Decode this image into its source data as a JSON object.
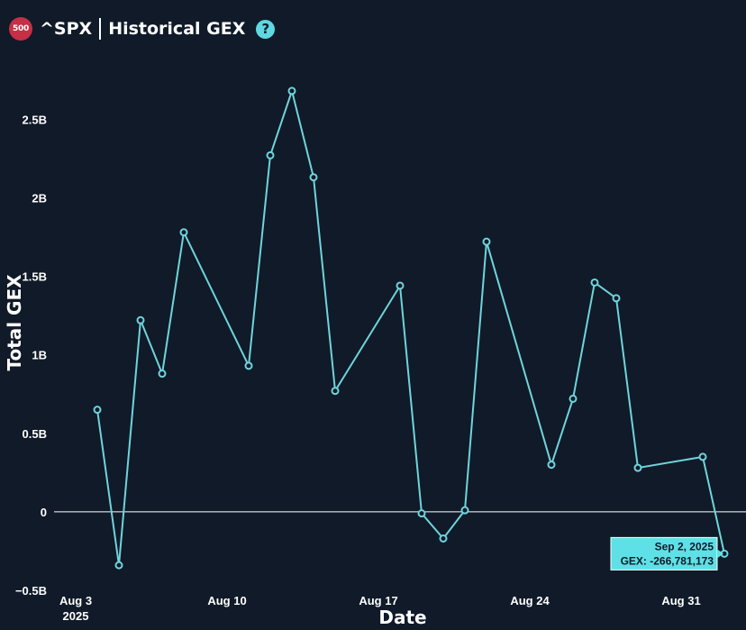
{
  "header": {
    "badge_text": "500",
    "ticker": "^SPX",
    "title": "Historical GEX",
    "help_symbol": "?"
  },
  "colors": {
    "background": "#101a28",
    "line": "#6fd4dc",
    "badge": "#c62f45",
    "help_icon": "#5fd8e2",
    "tooltip_bg": "#5fe0e6",
    "zero_line": "#ffffff"
  },
  "icons": {
    "badge": "spx-500-badge",
    "help": "question-mark-icon"
  },
  "chart_data": {
    "type": "line",
    "title": "^SPX | Historical GEX",
    "xlabel": "Date",
    "ylabel": "Total GEX",
    "x_ticks": [
      {
        "date": "2025-08-03",
        "label": "Aug 3",
        "sublabel": "2025"
      },
      {
        "date": "2025-08-10",
        "label": "Aug 10",
        "sublabel": ""
      },
      {
        "date": "2025-08-17",
        "label": "Aug 17",
        "sublabel": ""
      },
      {
        "date": "2025-08-24",
        "label": "Aug 24",
        "sublabel": ""
      },
      {
        "date": "2025-08-31",
        "label": "Aug 31",
        "sublabel": ""
      }
    ],
    "y_ticks": [
      {
        "value": -500000000,
        "label": "−0.5B"
      },
      {
        "value": 0,
        "label": "0"
      },
      {
        "value": 500000000,
        "label": "0.5B"
      },
      {
        "value": 1000000000,
        "label": "1B"
      },
      {
        "value": 1500000000,
        "label": "1.5B"
      },
      {
        "value": 2000000000,
        "label": "2B"
      },
      {
        "value": 2500000000,
        "label": "2.5B"
      }
    ],
    "xlim": [
      "2025-08-02",
      "2025-09-03"
    ],
    "ylim": [
      -500000000,
      2800000000
    ],
    "grid": false,
    "zero_line": true,
    "series": [
      {
        "points": [
          {
            "date": "2025-08-04",
            "value": 650000000
          },
          {
            "date": "2025-08-05",
            "value": -340000000
          },
          {
            "date": "2025-08-06",
            "value": 1220000000
          },
          {
            "date": "2025-08-07",
            "value": 880000000
          },
          {
            "date": "2025-08-08",
            "value": 1780000000
          },
          {
            "date": "2025-08-11",
            "value": 930000000
          },
          {
            "date": "2025-08-12",
            "value": 2270000000
          },
          {
            "date": "2025-08-13",
            "value": 2680000000
          },
          {
            "date": "2025-08-14",
            "value": 2130000000
          },
          {
            "date": "2025-08-15",
            "value": 770000000
          },
          {
            "date": "2025-08-18",
            "value": 1440000000
          },
          {
            "date": "2025-08-19",
            "value": -10000000
          },
          {
            "date": "2025-08-20",
            "value": -170000000
          },
          {
            "date": "2025-08-21",
            "value": 10000000
          },
          {
            "date": "2025-08-22",
            "value": 1720000000
          },
          {
            "date": "2025-08-25",
            "value": 300000000
          },
          {
            "date": "2025-08-26",
            "value": 720000000
          },
          {
            "date": "2025-08-27",
            "value": 1460000000
          },
          {
            "date": "2025-08-28",
            "value": 1360000000
          },
          {
            "date": "2025-08-29",
            "value": 280000000
          },
          {
            "date": "2025-09-01",
            "value": 350000000
          },
          {
            "date": "2025-09-02",
            "value": -266781173
          }
        ]
      }
    ],
    "tooltip": {
      "date_label": "Sep 2, 2025",
      "value_label": "GEX: -266,781,173",
      "point_date": "2025-09-02",
      "point_value": -266781173
    }
  }
}
